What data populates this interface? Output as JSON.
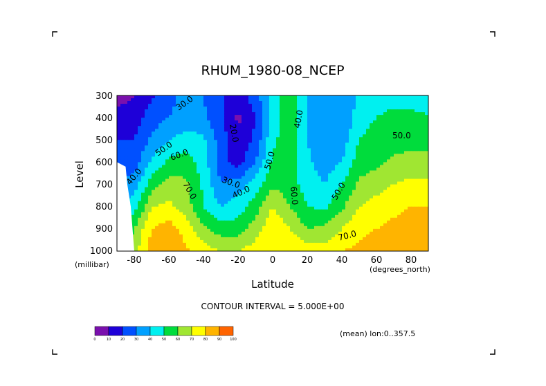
{
  "chart_data": {
    "type": "heatmap",
    "title": "RHUM_1980-08_NCEP",
    "xlabel": "Latitude",
    "x_units": "(degrees_north)",
    "ylabel": "Level",
    "y_units": "(millibar)",
    "xlim": [
      -90,
      90
    ],
    "ylim": [
      300,
      1000
    ],
    "y_inverted": true,
    "xticks": [
      -80,
      -60,
      -40,
      -20,
      0,
      20,
      40,
      60,
      80
    ],
    "xtick_labels": [
      "-80",
      "-60",
      "-40",
      "-20",
      "0",
      "20",
      "40",
      "60",
      "80"
    ],
    "yticks": [
      300,
      400,
      500,
      600,
      700,
      800,
      900,
      1000
    ],
    "ytick_labels": [
      "300",
      "400",
      "500",
      "600",
      "700",
      "800",
      "900",
      "1000"
    ],
    "contour_interval_text": "CONTOUR INTERVAL = 5.000E+00",
    "mean_text": "(mean) lon:0..357.5",
    "lat": [
      -90,
      -80,
      -70,
      -60,
      -50,
      -40,
      -30,
      -20,
      -10,
      0,
      10,
      20,
      30,
      40,
      50,
      60,
      70,
      80,
      90
    ],
    "levels": [
      300,
      400,
      500,
      600,
      700,
      800,
      900,
      1000
    ],
    "values": [
      [
        5,
        10,
        18,
        28,
        32,
        30,
        22,
        15,
        25,
        45,
        60,
        40,
        32,
        32,
        42,
        47,
        47,
        47,
        40
      ],
      [
        15,
        15,
        25,
        30,
        33,
        32,
        22,
        8,
        20,
        45,
        60,
        38,
        30,
        30,
        45,
        50,
        52,
        52,
        52
      ],
      [
        20,
        20,
        32,
        40,
        45,
        42,
        25,
        12,
        22,
        48,
        55,
        40,
        32,
        35,
        50,
        55,
        55,
        55,
        55
      ],
      [
        25,
        25,
        42,
        52,
        55,
        45,
        25,
        15,
        30,
        52,
        55,
        42,
        35,
        40,
        55,
        58,
        62,
        65,
        65
      ],
      [
        30,
        35,
        55,
        65,
        62,
        48,
        30,
        35,
        45,
        58,
        55,
        45,
        40,
        50,
        62,
        65,
        70,
        72,
        72
      ],
      [
        40,
        45,
        70,
        72,
        65,
        50,
        40,
        45,
        55,
        70,
        60,
        50,
        48,
        58,
        70,
        75,
        78,
        80,
        80
      ],
      [
        50,
        60,
        80,
        85,
        75,
        62,
        55,
        55,
        65,
        78,
        70,
        60,
        62,
        70,
        78,
        80,
        82,
        85,
        85
      ],
      [
        55,
        65,
        85,
        90,
        82,
        75,
        70,
        70,
        75,
        80,
        80,
        75,
        75,
        80,
        82,
        85,
        88,
        90,
        90
      ]
    ],
    "colorbar": {
      "bounds": [
        0,
        10,
        20,
        30,
        40,
        50,
        60,
        70,
        80,
        90,
        100
      ],
      "labels": [
        "0",
        "10",
        "20",
        "30",
        "40",
        "50",
        "60",
        "70",
        "80",
        "90",
        "100"
      ],
      "colors": [
        "#7a10ad",
        "#1e00d8",
        "#0050ff",
        "#00a0ff",
        "#00f0f0",
        "#00dc3c",
        "#a0e632",
        "#ffff00",
        "#ffb400",
        "#ff6400",
        "#ff0000"
      ]
    },
    "contour_labels": [
      {
        "text": "30.0"
      },
      {
        "text": "50.0"
      },
      {
        "text": "60.0"
      },
      {
        "text": "40.0"
      },
      {
        "text": "70.0"
      },
      {
        "text": "20.0"
      },
      {
        "text": "30.0"
      },
      {
        "text": "40.0"
      },
      {
        "text": "50.0"
      },
      {
        "text": "40.0"
      },
      {
        "text": "60.0"
      },
      {
        "text": "50.0"
      },
      {
        "text": "50.0"
      },
      {
        "text": "70.0"
      }
    ]
  }
}
